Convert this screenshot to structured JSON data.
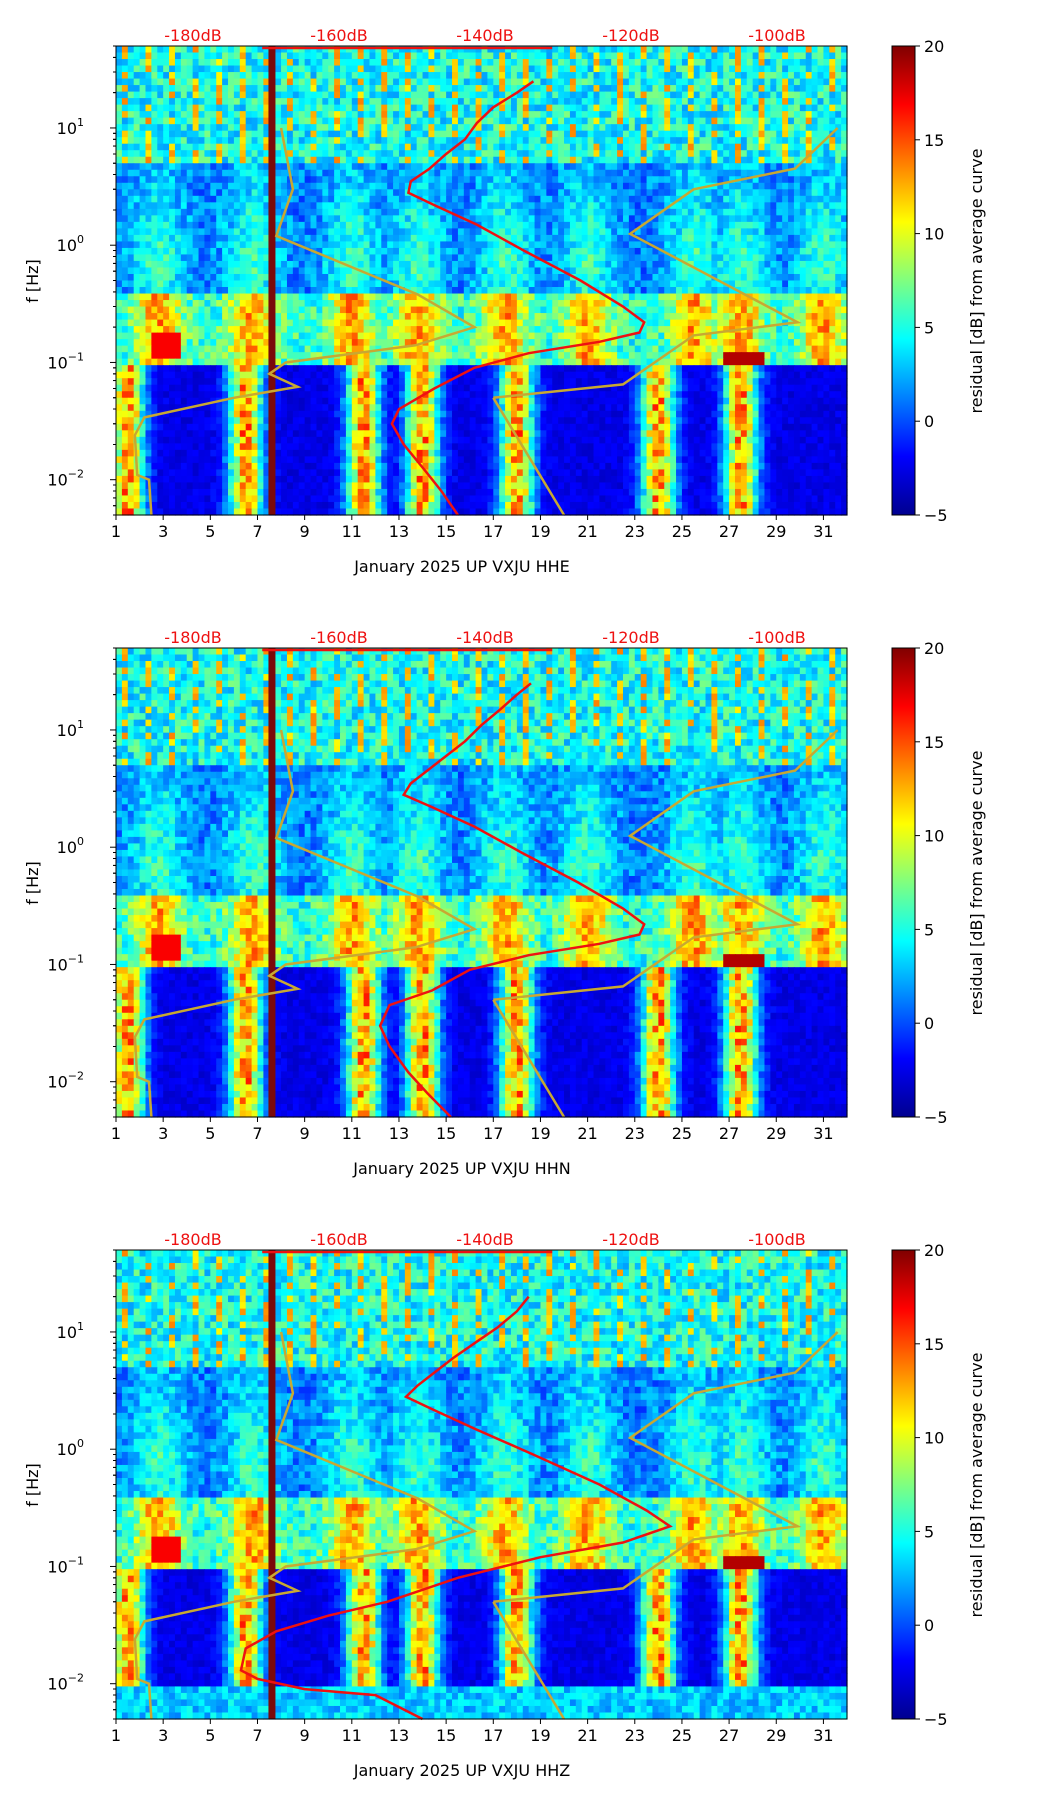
{
  "colors": {
    "median_curve": "#ee1111",
    "noise_model": "#c8a832",
    "db_label": "#ee1111",
    "gap_column": "#7a0a0a"
  },
  "chart_data": [
    {
      "type": "heatmap",
      "channel": "HHE",
      "xlabel": "January 2025 UP VXJU  HHE",
      "ylabel": "f [Hz]",
      "x_ticks": [
        "1",
        "3",
        "5",
        "7",
        "9",
        "11",
        "13",
        "15",
        "17",
        "19",
        "21",
        "23",
        "25",
        "27",
        "29",
        "31"
      ],
      "y_ticks": [
        "10^-2",
        "10^-1",
        "10^0",
        "10^1"
      ],
      "xlim": [
        1,
        32
      ],
      "ylim_hz": [
        0.005,
        50
      ],
      "y_scale": "log",
      "db_axis": [
        "-180dB",
        "-160dB",
        "-140dB",
        "-120dB",
        "-100dB"
      ],
      "colorbar": {
        "label": "residual [dB] from average curve",
        "ticks": [
          "20",
          "15",
          "10",
          "5",
          "0",
          "−5"
        ],
        "range": [
          -5,
          20
        ]
      },
      "median_curve": [
        [
          15.5,
          0.005
        ],
        [
          14.8,
          0.008
        ],
        [
          14.1,
          0.012
        ],
        [
          13.2,
          0.02
        ],
        [
          12.7,
          0.03
        ],
        [
          13.0,
          0.04
        ],
        [
          14.5,
          0.06
        ],
        [
          16.2,
          0.09
        ],
        [
          18.5,
          0.12
        ],
        [
          21.5,
          0.15
        ],
        [
          23.2,
          0.18
        ],
        [
          23.4,
          0.22
        ],
        [
          22.5,
          0.3
        ],
        [
          20.7,
          0.5
        ],
        [
          18.3,
          0.9
        ],
        [
          16.3,
          1.5
        ],
        [
          14.5,
          2.2
        ],
        [
          13.4,
          2.8
        ],
        [
          13.5,
          3.5
        ],
        [
          14.3,
          4.5
        ],
        [
          15.0,
          6
        ],
        [
          15.8,
          8
        ],
        [
          16.3,
          11
        ],
        [
          17.0,
          15
        ],
        [
          18.0,
          20
        ],
        [
          18.7,
          25
        ]
      ],
      "noise_model": [
        [
          2.5,
          0.005
        ],
        [
          2.4,
          0.01
        ],
        [
          1.9,
          0.011
        ],
        [
          1.8,
          0.024
        ],
        [
          2.2,
          0.034
        ],
        [
          6.0,
          0.05
        ],
        [
          8.7,
          0.062
        ],
        [
          7.5,
          0.08
        ],
        [
          8.2,
          0.1
        ],
        [
          13.7,
          0.14
        ],
        [
          16.2,
          0.2
        ],
        [
          13.8,
          0.38
        ],
        [
          7.8,
          1.2
        ],
        [
          8.5,
          3.0
        ],
        [
          8.0,
          10
        ],
        null,
        [
          17.0,
          0.05
        ],
        [
          22.5,
          0.065
        ],
        [
          25.5,
          0.17
        ],
        [
          29.9,
          0.22
        ],
        [
          22.8,
          1.25
        ],
        [
          25.5,
          3.0
        ],
        [
          29.8,
          4.5
        ],
        [
          31.6,
          10
        ],
        null,
        [
          20.0,
          0.005
        ],
        [
          17.0,
          0.05
        ]
      ]
    },
    {
      "type": "heatmap",
      "channel": "HHN",
      "xlabel": "January 2025 UP VXJU  HHN",
      "ylabel": "f [Hz]",
      "x_ticks": [
        "1",
        "3",
        "5",
        "7",
        "9",
        "11",
        "13",
        "15",
        "17",
        "19",
        "21",
        "23",
        "25",
        "27",
        "29",
        "31"
      ],
      "y_ticks": [
        "10^-2",
        "10^-1",
        "10^0",
        "10^1"
      ],
      "xlim": [
        1,
        32
      ],
      "ylim_hz": [
        0.005,
        50
      ],
      "y_scale": "log",
      "db_axis": [
        "-180dB",
        "-160dB",
        "-140dB",
        "-120dB",
        "-100dB"
      ],
      "colorbar": {
        "label": "residual [dB] from average curve",
        "ticks": [
          "20",
          "15",
          "10",
          "5",
          "0",
          "−5"
        ],
        "range": [
          -5,
          20
        ]
      },
      "median_curve": [
        [
          15.2,
          0.005
        ],
        [
          14.2,
          0.008
        ],
        [
          13.4,
          0.012
        ],
        [
          12.6,
          0.02
        ],
        [
          12.2,
          0.03
        ],
        [
          12.6,
          0.045
        ],
        [
          14.4,
          0.06
        ],
        [
          16.0,
          0.09
        ],
        [
          18.5,
          0.12
        ],
        [
          21.5,
          0.15
        ],
        [
          23.2,
          0.18
        ],
        [
          23.4,
          0.22
        ],
        [
          22.5,
          0.3
        ],
        [
          20.6,
          0.5
        ],
        [
          18.2,
          0.9
        ],
        [
          16.2,
          1.5
        ],
        [
          14.4,
          2.2
        ],
        [
          13.2,
          2.8
        ],
        [
          13.5,
          3.5
        ],
        [
          14.2,
          4.5
        ],
        [
          15.0,
          6
        ],
        [
          15.8,
          8
        ],
        [
          16.5,
          11
        ],
        [
          17.3,
          15
        ],
        [
          18.0,
          20
        ],
        [
          18.6,
          25
        ]
      ],
      "noise_model": [
        [
          2.5,
          0.005
        ],
        [
          2.4,
          0.01
        ],
        [
          1.9,
          0.011
        ],
        [
          1.8,
          0.024
        ],
        [
          2.2,
          0.034
        ],
        [
          6.0,
          0.05
        ],
        [
          8.7,
          0.062
        ],
        [
          7.5,
          0.08
        ],
        [
          8.2,
          0.1
        ],
        [
          13.7,
          0.14
        ],
        [
          16.2,
          0.2
        ],
        [
          13.8,
          0.38
        ],
        [
          7.8,
          1.2
        ],
        [
          8.5,
          3.0
        ],
        [
          8.0,
          10
        ],
        null,
        [
          17.0,
          0.05
        ],
        [
          22.5,
          0.065
        ],
        [
          25.5,
          0.17
        ],
        [
          29.9,
          0.22
        ],
        [
          22.8,
          1.25
        ],
        [
          25.5,
          3.0
        ],
        [
          29.8,
          4.5
        ],
        [
          31.6,
          10
        ],
        null,
        [
          20.0,
          0.005
        ],
        [
          17.0,
          0.05
        ]
      ]
    },
    {
      "type": "heatmap",
      "channel": "HHZ",
      "xlabel": "January 2025 UP VXJU  HHZ",
      "ylabel": "f [Hz]",
      "x_ticks": [
        "1",
        "3",
        "5",
        "7",
        "9",
        "11",
        "13",
        "15",
        "17",
        "19",
        "21",
        "23",
        "25",
        "27",
        "29",
        "31"
      ],
      "y_ticks": [
        "10^-2",
        "10^-1",
        "10^0",
        "10^1"
      ],
      "xlim": [
        1,
        32
      ],
      "ylim_hz": [
        0.005,
        50
      ],
      "y_scale": "log",
      "db_axis": [
        "-180dB",
        "-160dB",
        "-140dB",
        "-120dB",
        "-100dB"
      ],
      "colorbar": {
        "label": "residual [dB] from average curve",
        "ticks": [
          "20",
          "15",
          "10",
          "5",
          "0",
          "−5"
        ],
        "range": [
          -5,
          20
        ]
      },
      "median_curve": [
        [
          14.0,
          0.005
        ],
        [
          12.0,
          0.008
        ],
        [
          9.0,
          0.009
        ],
        [
          7.0,
          0.011
        ],
        [
          6.3,
          0.013
        ],
        [
          6.5,
          0.02
        ],
        [
          7.8,
          0.028
        ],
        [
          10.0,
          0.038
        ],
        [
          12.5,
          0.05
        ],
        [
          15.5,
          0.08
        ],
        [
          19.0,
          0.12
        ],
        [
          22.5,
          0.16
        ],
        [
          24.5,
          0.22
        ],
        [
          23.5,
          0.3
        ],
        [
          21.5,
          0.5
        ],
        [
          18.7,
          0.9
        ],
        [
          16.2,
          1.5
        ],
        [
          14.4,
          2.2
        ],
        [
          13.3,
          2.8
        ],
        [
          13.8,
          3.5
        ],
        [
          14.5,
          4.5
        ],
        [
          15.3,
          6
        ],
        [
          16.2,
          8
        ],
        [
          17.2,
          11
        ],
        [
          18.0,
          15
        ],
        [
          18.5,
          20
        ]
      ],
      "noise_model": [
        [
          2.5,
          0.005
        ],
        [
          2.4,
          0.01
        ],
        [
          1.9,
          0.011
        ],
        [
          1.8,
          0.024
        ],
        [
          2.2,
          0.034
        ],
        [
          6.0,
          0.05
        ],
        [
          8.7,
          0.062
        ],
        [
          7.5,
          0.08
        ],
        [
          8.2,
          0.1
        ],
        [
          13.7,
          0.14
        ],
        [
          16.2,
          0.2
        ],
        [
          13.8,
          0.38
        ],
        [
          7.8,
          1.2
        ],
        [
          8.5,
          3.0
        ],
        [
          8.0,
          10
        ],
        null,
        [
          17.0,
          0.05
        ],
        [
          22.5,
          0.065
        ],
        [
          25.5,
          0.17
        ],
        [
          29.9,
          0.22
        ],
        [
          22.8,
          1.25
        ],
        [
          25.5,
          3.0
        ],
        [
          29.8,
          4.5
        ],
        [
          31.6,
          10
        ],
        null,
        [
          20.0,
          0.005
        ],
        [
          17.0,
          0.05
        ]
      ]
    }
  ]
}
